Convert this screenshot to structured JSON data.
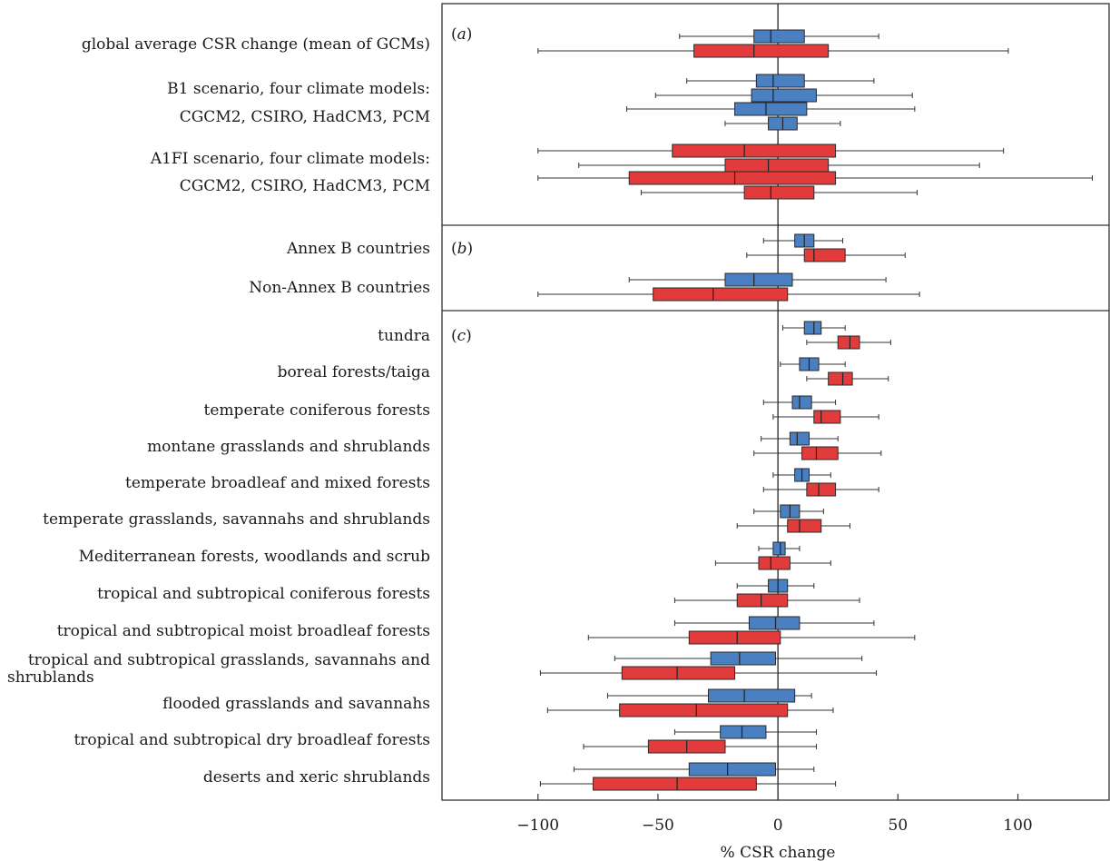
{
  "chart_data": {
    "type": "boxplot",
    "xlabel": "% CSR change",
    "xlim": [
      -140,
      138
    ],
    "xticks": [
      -100,
      -50,
      0,
      50,
      100
    ],
    "xtick_labels": [
      "−100",
      "−50",
      "0",
      "50",
      "100"
    ],
    "colors": {
      "B1": "#4a7fc1",
      "A1FI": "#e23b3b",
      "frame": "#333333"
    },
    "panels": [
      {
        "label": "(a)",
        "label_parts": [
          "(",
          "a",
          ")"
        ]
      },
      {
        "label": "(b)",
        "label_parts": [
          "(",
          "b",
          ")"
        ]
      },
      {
        "label": "(c)",
        "label_parts": [
          "(",
          "c",
          ")"
        ]
      }
    ],
    "rows": [
      {
        "label": "global average CSR change (mean of GCMs)",
        "panel": 0,
        "boxes": [
          {
            "series": "B1",
            "min": -41,
            "q1": -10,
            "median": -3,
            "q3": 11,
            "max": 42
          },
          {
            "series": "A1FI",
            "min": -100,
            "q1": -35,
            "median": -10,
            "q3": 21,
            "max": 96
          }
        ]
      },
      {
        "label": "B1 scenario, four climate models:",
        "panel": 0,
        "boxes": [
          {
            "series": "B1",
            "min": -38,
            "q1": -9,
            "median": -2,
            "q3": 11,
            "max": 40
          },
          {
            "series": "B1",
            "min": -51,
            "q1": -11,
            "median": -2,
            "q3": 16,
            "max": 56
          }
        ]
      },
      {
        "label": "CGCM2, CSIRO, HadCM3, PCM",
        "panel": 0,
        "boxes": [
          {
            "series": "B1",
            "min": -63,
            "q1": -18,
            "median": -5,
            "q3": 12,
            "max": 57
          },
          {
            "series": "B1",
            "min": -22,
            "q1": -4,
            "median": 2,
            "q3": 8,
            "max": 26
          }
        ]
      },
      {
        "label": "A1FI scenario, four climate models:",
        "panel": 0,
        "boxes": [
          {
            "series": "A1FI",
            "min": -100,
            "q1": -44,
            "median": -14,
            "q3": 24,
            "max": 94
          },
          {
            "series": "A1FI",
            "min": -83,
            "q1": -22,
            "median": -4,
            "q3": 21,
            "max": 84
          }
        ]
      },
      {
        "label": "CGCM2, CSIRO, HadCM3, PCM",
        "panel": 0,
        "boxes": [
          {
            "series": "A1FI",
            "min": -100,
            "q1": -62,
            "median": -18,
            "q3": 24,
            "max": 131
          },
          {
            "series": "A1FI",
            "min": -57,
            "q1": -14,
            "median": -3,
            "q3": 15,
            "max": 58
          }
        ]
      },
      {
        "label": "Annex B countries",
        "panel": 1,
        "boxes": [
          {
            "series": "B1",
            "min": -6,
            "q1": 7,
            "median": 11,
            "q3": 15,
            "max": 27
          },
          {
            "series": "A1FI",
            "min": -13,
            "q1": 11,
            "median": 15,
            "q3": 28,
            "max": 53
          }
        ]
      },
      {
        "label": "Non-Annex B countries",
        "panel": 1,
        "boxes": [
          {
            "series": "B1",
            "min": -62,
            "q1": -22,
            "median": -10,
            "q3": 6,
            "max": 45
          },
          {
            "series": "A1FI",
            "min": -100,
            "q1": -52,
            "median": -27,
            "q3": 4,
            "max": 59
          }
        ]
      },
      {
        "label": "tundra",
        "panel": 2,
        "boxes": [
          {
            "series": "B1",
            "min": 2,
            "q1": 11,
            "median": 15,
            "q3": 18,
            "max": 28
          },
          {
            "series": "A1FI",
            "min": 12,
            "q1": 25,
            "median": 30,
            "q3": 34,
            "max": 47
          }
        ]
      },
      {
        "label": "boreal forests/taiga",
        "panel": 2,
        "boxes": [
          {
            "series": "B1",
            "min": 1,
            "q1": 9,
            "median": 13,
            "q3": 17,
            "max": 28
          },
          {
            "series": "A1FI",
            "min": 12,
            "q1": 21,
            "median": 27,
            "q3": 31,
            "max": 46
          }
        ]
      },
      {
        "label": "temperate coniferous forests",
        "panel": 2,
        "boxes": [
          {
            "series": "B1",
            "min": -6,
            "q1": 6,
            "median": 9,
            "q3": 14,
            "max": 24
          },
          {
            "series": "A1FI",
            "min": -2,
            "q1": 15,
            "median": 18,
            "q3": 26,
            "max": 42
          }
        ]
      },
      {
        "label": "montane grasslands and shrublands",
        "panel": 2,
        "boxes": [
          {
            "series": "B1",
            "min": -7,
            "q1": 5,
            "median": 8,
            "q3": 13,
            "max": 25
          },
          {
            "series": "A1FI",
            "min": -10,
            "q1": 10,
            "median": 16,
            "q3": 25,
            "max": 43
          }
        ]
      },
      {
        "label": "temperate broadleaf and mixed forests",
        "panel": 2,
        "boxes": [
          {
            "series": "B1",
            "min": -2,
            "q1": 7,
            "median": 10,
            "q3": 13,
            "max": 22
          },
          {
            "series": "A1FI",
            "min": -6,
            "q1": 12,
            "median": 17,
            "q3": 24,
            "max": 42
          }
        ]
      },
      {
        "label": "temperate grasslands, savannahs and shrublands",
        "panel": 2,
        "boxes": [
          {
            "series": "B1",
            "min": -10,
            "q1": 1,
            "median": 5,
            "q3": 9,
            "max": 19
          },
          {
            "series": "A1FI",
            "min": -17,
            "q1": 4,
            "median": 9,
            "q3": 18,
            "max": 30
          }
        ]
      },
      {
        "label": "Mediterranean forests, woodlands and scrub",
        "panel": 2,
        "boxes": [
          {
            "series": "B1",
            "min": -8,
            "q1": -2,
            "median": 1,
            "q3": 3,
            "max": 9
          },
          {
            "series": "A1FI",
            "min": -26,
            "q1": -8,
            "median": -3,
            "q3": 5,
            "max": 22
          }
        ]
      },
      {
        "label": "tropical and subtropical coniferous forests",
        "panel": 2,
        "boxes": [
          {
            "series": "B1",
            "min": -17,
            "q1": -4,
            "median": 0,
            "q3": 4,
            "max": 15
          },
          {
            "series": "A1FI",
            "min": -43,
            "q1": -17,
            "median": -7,
            "q3": 4,
            "max": 34
          }
        ]
      },
      {
        "label": "tropical and subtropical moist broadleaf forests",
        "panel": 2,
        "boxes": [
          {
            "series": "B1",
            "min": -43,
            "q1": -12,
            "median": -1,
            "q3": 9,
            "max": 40
          },
          {
            "series": "A1FI",
            "min": -79,
            "q1": -37,
            "median": -17,
            "q3": 1,
            "max": 57
          }
        ]
      },
      {
        "label": "tropical and subtropical grasslands, savannahs and",
        "label2": "shrublands",
        "panel": 2,
        "boxes": [
          {
            "series": "B1",
            "min": -68,
            "q1": -28,
            "median": -16,
            "q3": -1,
            "max": 35
          },
          {
            "series": "A1FI",
            "min": -99,
            "q1": -65,
            "median": -42,
            "q3": -18,
            "max": 41
          }
        ]
      },
      {
        "label": "flooded grasslands and savannahs",
        "panel": 2,
        "boxes": [
          {
            "series": "B1",
            "min": -71,
            "q1": -29,
            "median": -14,
            "q3": 7,
            "max": 14
          },
          {
            "series": "A1FI",
            "min": -96,
            "q1": -66,
            "median": -34,
            "q3": 4,
            "max": 23
          }
        ]
      },
      {
        "label": "tropical and subtropical dry broadleaf forests",
        "panel": 2,
        "boxes": [
          {
            "series": "B1",
            "min": -43,
            "q1": -24,
            "median": -15,
            "q3": -5,
            "max": 16
          },
          {
            "series": "A1FI",
            "min": -81,
            "q1": -54,
            "median": -38,
            "q3": -22,
            "max": 16
          }
        ]
      },
      {
        "label": "deserts and xeric shrublands",
        "panel": 2,
        "boxes": [
          {
            "series": "B1",
            "min": -85,
            "q1": -37,
            "median": -21,
            "q3": -1,
            "max": 15
          },
          {
            "series": "A1FI",
            "min": -99,
            "q1": -77,
            "median": -42,
            "q3": -9,
            "max": 24
          }
        ]
      }
    ]
  }
}
